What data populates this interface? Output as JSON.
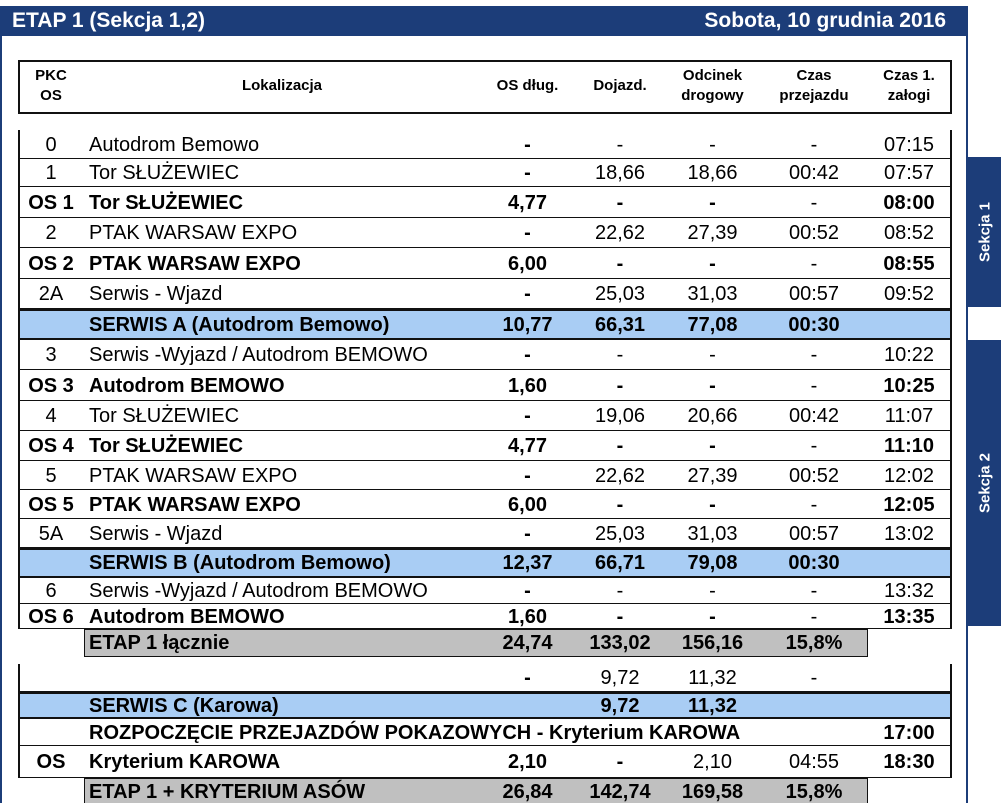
{
  "header": {
    "title": "ETAP 1 (Sekcja 1,2)",
    "date": "Sobota, 10 grudnia 2016"
  },
  "side_tabs": [
    "Sekcja 1",
    "Sekcja 2"
  ],
  "table": {
    "columns": [
      "PKC\nOS",
      "Lokalizacja",
      "OS dług.",
      "Dojazd.",
      "Odcinek\ndrogowy",
      "Czas\nprzejazdu",
      "Czas 1.\nzałogi"
    ],
    "rows": [
      {
        "pkc": "0",
        "loc": "Autodrom Bemowo",
        "os": "-",
        "doj": "-",
        "odc": "-",
        "czas": "-",
        "t1": "07:15"
      },
      {
        "pkc": "1",
        "loc": "Tor SŁUŻEWIEC",
        "os": "-",
        "doj": "18,66",
        "odc": "18,66",
        "czas": "00:42",
        "t1": "07:57"
      },
      {
        "pkc": "OS 1",
        "loc": "Tor SŁUŻEWIEC",
        "os": "4,77",
        "doj": "-",
        "odc": "-",
        "czas": "-",
        "t1": "08:00"
      },
      {
        "pkc": "2",
        "loc": "PTAK WARSAW EXPO",
        "os": "-",
        "doj": "22,62",
        "odc": "27,39",
        "czas": "00:52",
        "t1": "08:52"
      },
      {
        "pkc": "OS 2",
        "loc": "PTAK WARSAW EXPO",
        "os": "6,00",
        "doj": "-",
        "odc": "-",
        "czas": "-",
        "t1": "08:55"
      },
      {
        "pkc": "2A",
        "loc": "Serwis - Wjazd",
        "os": "-",
        "doj": "25,03",
        "odc": "31,03",
        "czas": "00:57",
        "t1": "09:52"
      },
      {
        "loc": "SERWIS A (Autodrom Bemowo)",
        "os": "10,77",
        "doj": "66,31",
        "odc": "77,08",
        "czas": "00:30"
      },
      {
        "pkc": "3",
        "loc": "Serwis -Wyjazd / Autodrom BEMOWO",
        "os": "-",
        "doj": "-",
        "odc": "-",
        "czas": "-",
        "t1": "10:22"
      },
      {
        "pkc": "OS 3",
        "loc": "Autodrom BEMOWO",
        "os": "1,60",
        "doj": "-",
        "odc": "-",
        "czas": "-",
        "t1": "10:25"
      },
      {
        "pkc": "4",
        "loc": "Tor SŁUŻEWIEC",
        "os": "-",
        "doj": "19,06",
        "odc": "20,66",
        "czas": "00:42",
        "t1": "11:07"
      },
      {
        "pkc": "OS 4",
        "loc": "Tor SŁUŻEWIEC",
        "os": "4,77",
        "doj": "-",
        "odc": "-",
        "czas": "-",
        "t1": "11:10"
      },
      {
        "pkc": "5",
        "loc": "PTAK WARSAW EXPO",
        "os": "-",
        "doj": "22,62",
        "odc": "27,39",
        "czas": "00:52",
        "t1": "12:02"
      },
      {
        "pkc": "OS 5",
        "loc": "PTAK WARSAW EXPO",
        "os": "6,00",
        "doj": "-",
        "odc": "-",
        "czas": "-",
        "t1": "12:05"
      },
      {
        "pkc": "5A",
        "loc": "Serwis - Wjazd",
        "os": "-",
        "doj": "25,03",
        "odc": "31,03",
        "czas": "00:57",
        "t1": "13:02"
      },
      {
        "loc": "SERWIS B (Autodrom Bemowo)",
        "os": "12,37",
        "doj": "66,71",
        "odc": "79,08",
        "czas": "00:30"
      },
      {
        "pkc": "6",
        "loc": "Serwis -Wyjazd / Autodrom BEMOWO",
        "os": "-",
        "doj": "-",
        "odc": "-",
        "czas": "-",
        "t1": "13:32"
      },
      {
        "pkc": "OS 6",
        "loc": "Autodrom BEMOWO",
        "os": "1,60",
        "doj": "-",
        "odc": "-",
        "czas": "-",
        "t1": "13:35"
      },
      {
        "loc": "ETAP 1 łącznie",
        "os": "24,74",
        "doj": "133,02",
        "odc": "156,16",
        "czas": "15,8%"
      },
      {
        "os": "-",
        "doj": "9,72",
        "odc": "11,32",
        "czas": "-"
      },
      {
        "loc": "SERWIS C (Karowa)",
        "doj": "9,72",
        "odc": "11,32"
      },
      {
        "loc": "ROZPOCZĘCIE PRZEJAZDÓW POKAZOWYCH - Kryterium KAROWA",
        "t1": "17:00"
      },
      {
        "pkc": "OS",
        "loc": "Kryterium KAROWA",
        "os": "2,10",
        "doj": "-",
        "odc": "2,10",
        "czas": "04:55",
        "t1": "18:30"
      },
      {
        "loc": "ETAP 1 + KRYTERIUM ASÓW",
        "os": "26,84",
        "doj": "142,74",
        "odc": "169,58",
        "czas": "15,8%"
      }
    ]
  }
}
